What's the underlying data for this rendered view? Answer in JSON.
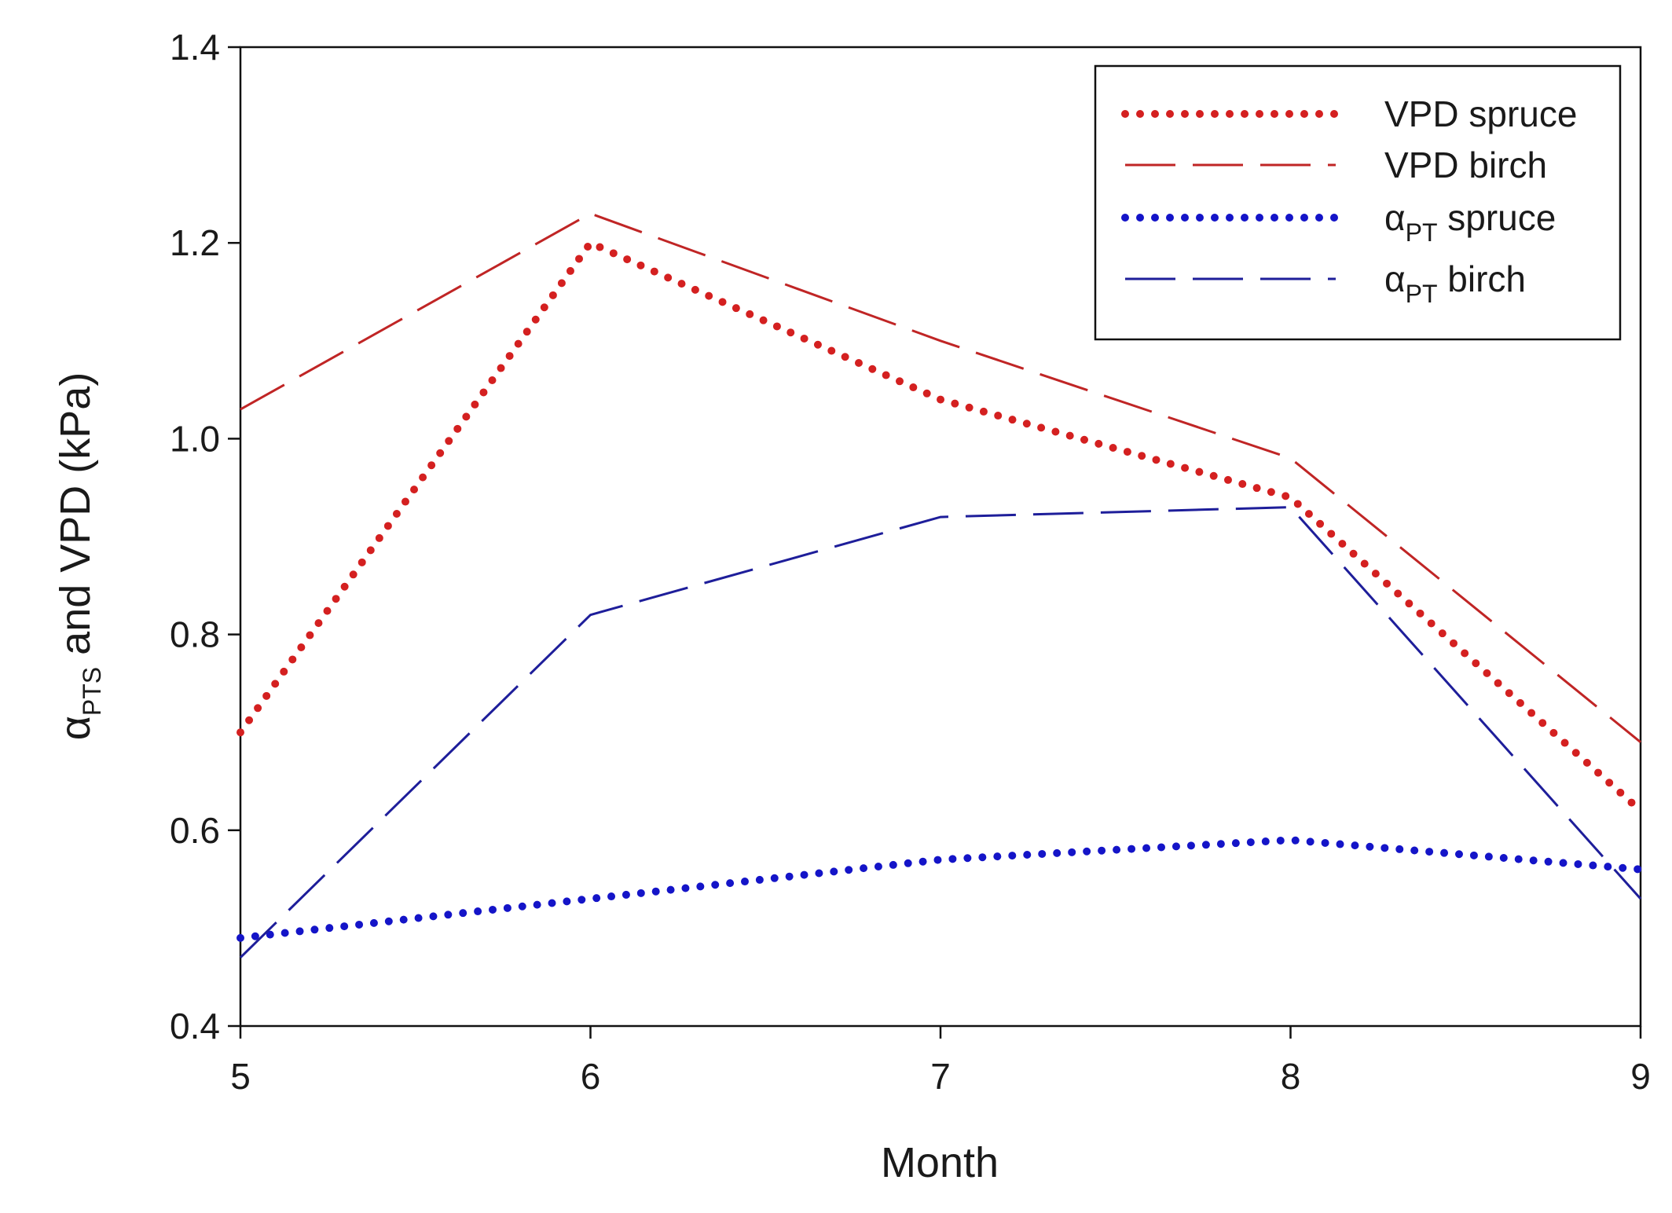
{
  "chart_data": {
    "type": "line",
    "xlabel": "Month",
    "ylabel": {
      "greek": "α",
      "subscript": "PTS",
      "rest": " and VPD (kPa)"
    },
    "xlim": [
      5,
      9
    ],
    "ylim": [
      0.4,
      1.4
    ],
    "x_ticks": [
      "5",
      "6",
      "7",
      "8",
      "9"
    ],
    "y_ticks": [
      "0.4",
      "0.6",
      "0.8",
      "1.0",
      "1.2",
      "1.4"
    ],
    "x": [
      5,
      6,
      7,
      8,
      9
    ],
    "legend_position": "top-right",
    "grid": false,
    "series": [
      {
        "name": "VPD spruce",
        "legend": {
          "prefix": "",
          "sub": "",
          "suffix": "VPD spruce"
        },
        "color": "#d42020",
        "style": "dotted",
        "values": [
          0.7,
          1.2,
          1.04,
          0.94,
          0.62
        ]
      },
      {
        "name": "VPD birch",
        "legend": {
          "prefix": "",
          "sub": "",
          "suffix": "VPD birch"
        },
        "color": "#c02525",
        "style": "dashed",
        "values": [
          1.03,
          1.23,
          1.1,
          0.98,
          0.69
        ]
      },
      {
        "name": "αPT spruce",
        "legend": {
          "prefix": "α",
          "sub": "PT",
          "suffix": " spruce"
        },
        "color": "#1414c8",
        "style": "dotted",
        "values": [
          0.49,
          0.53,
          0.57,
          0.59,
          0.56
        ]
      },
      {
        "name": "αPT birch",
        "legend": {
          "prefix": "α",
          "sub": "PT",
          "suffix": " birch"
        },
        "color": "#1e1e9a",
        "style": "dashed",
        "values": [
          0.47,
          0.82,
          0.92,
          0.93,
          0.53
        ]
      }
    ]
  }
}
